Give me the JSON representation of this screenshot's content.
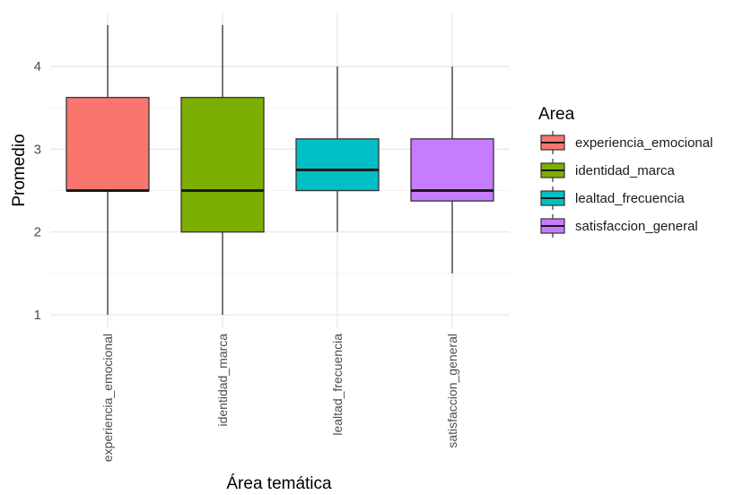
{
  "chart_data": {
    "type": "boxplot",
    "title": "",
    "xlabel": "Área temática",
    "ylabel": "Promedio",
    "ylim": [
      0.9,
      4.6
    ],
    "yticks": [
      1,
      2,
      3,
      4
    ],
    "grid": true,
    "legend": {
      "title": "Area",
      "placement": "right"
    },
    "categories": [
      "experiencia_emocional",
      "identidad_marca",
      "lealtad_frecuencia",
      "satisfaccion_general"
    ],
    "series": [
      {
        "category": "experiencia_emocional",
        "min": 1.0,
        "q1": 2.5,
        "median": 2.5,
        "q3": 3.625,
        "max": 4.5,
        "color": "#F8766D"
      },
      {
        "category": "identidad_marca",
        "min": 1.0,
        "q1": 2.0,
        "median": 2.5,
        "q3": 3.625,
        "max": 4.5,
        "color": "#7CAE00"
      },
      {
        "category": "lealtad_frecuencia",
        "min": 2.0,
        "q1": 2.5,
        "median": 2.75,
        "q3": 3.125,
        "max": 4.0,
        "color": "#00BFC4"
      },
      {
        "category": "satisfaccion_general",
        "min": 1.5,
        "q1": 2.375,
        "median": 2.5,
        "q3": 3.125,
        "max": 4.0,
        "color": "#C77CFF"
      }
    ]
  }
}
